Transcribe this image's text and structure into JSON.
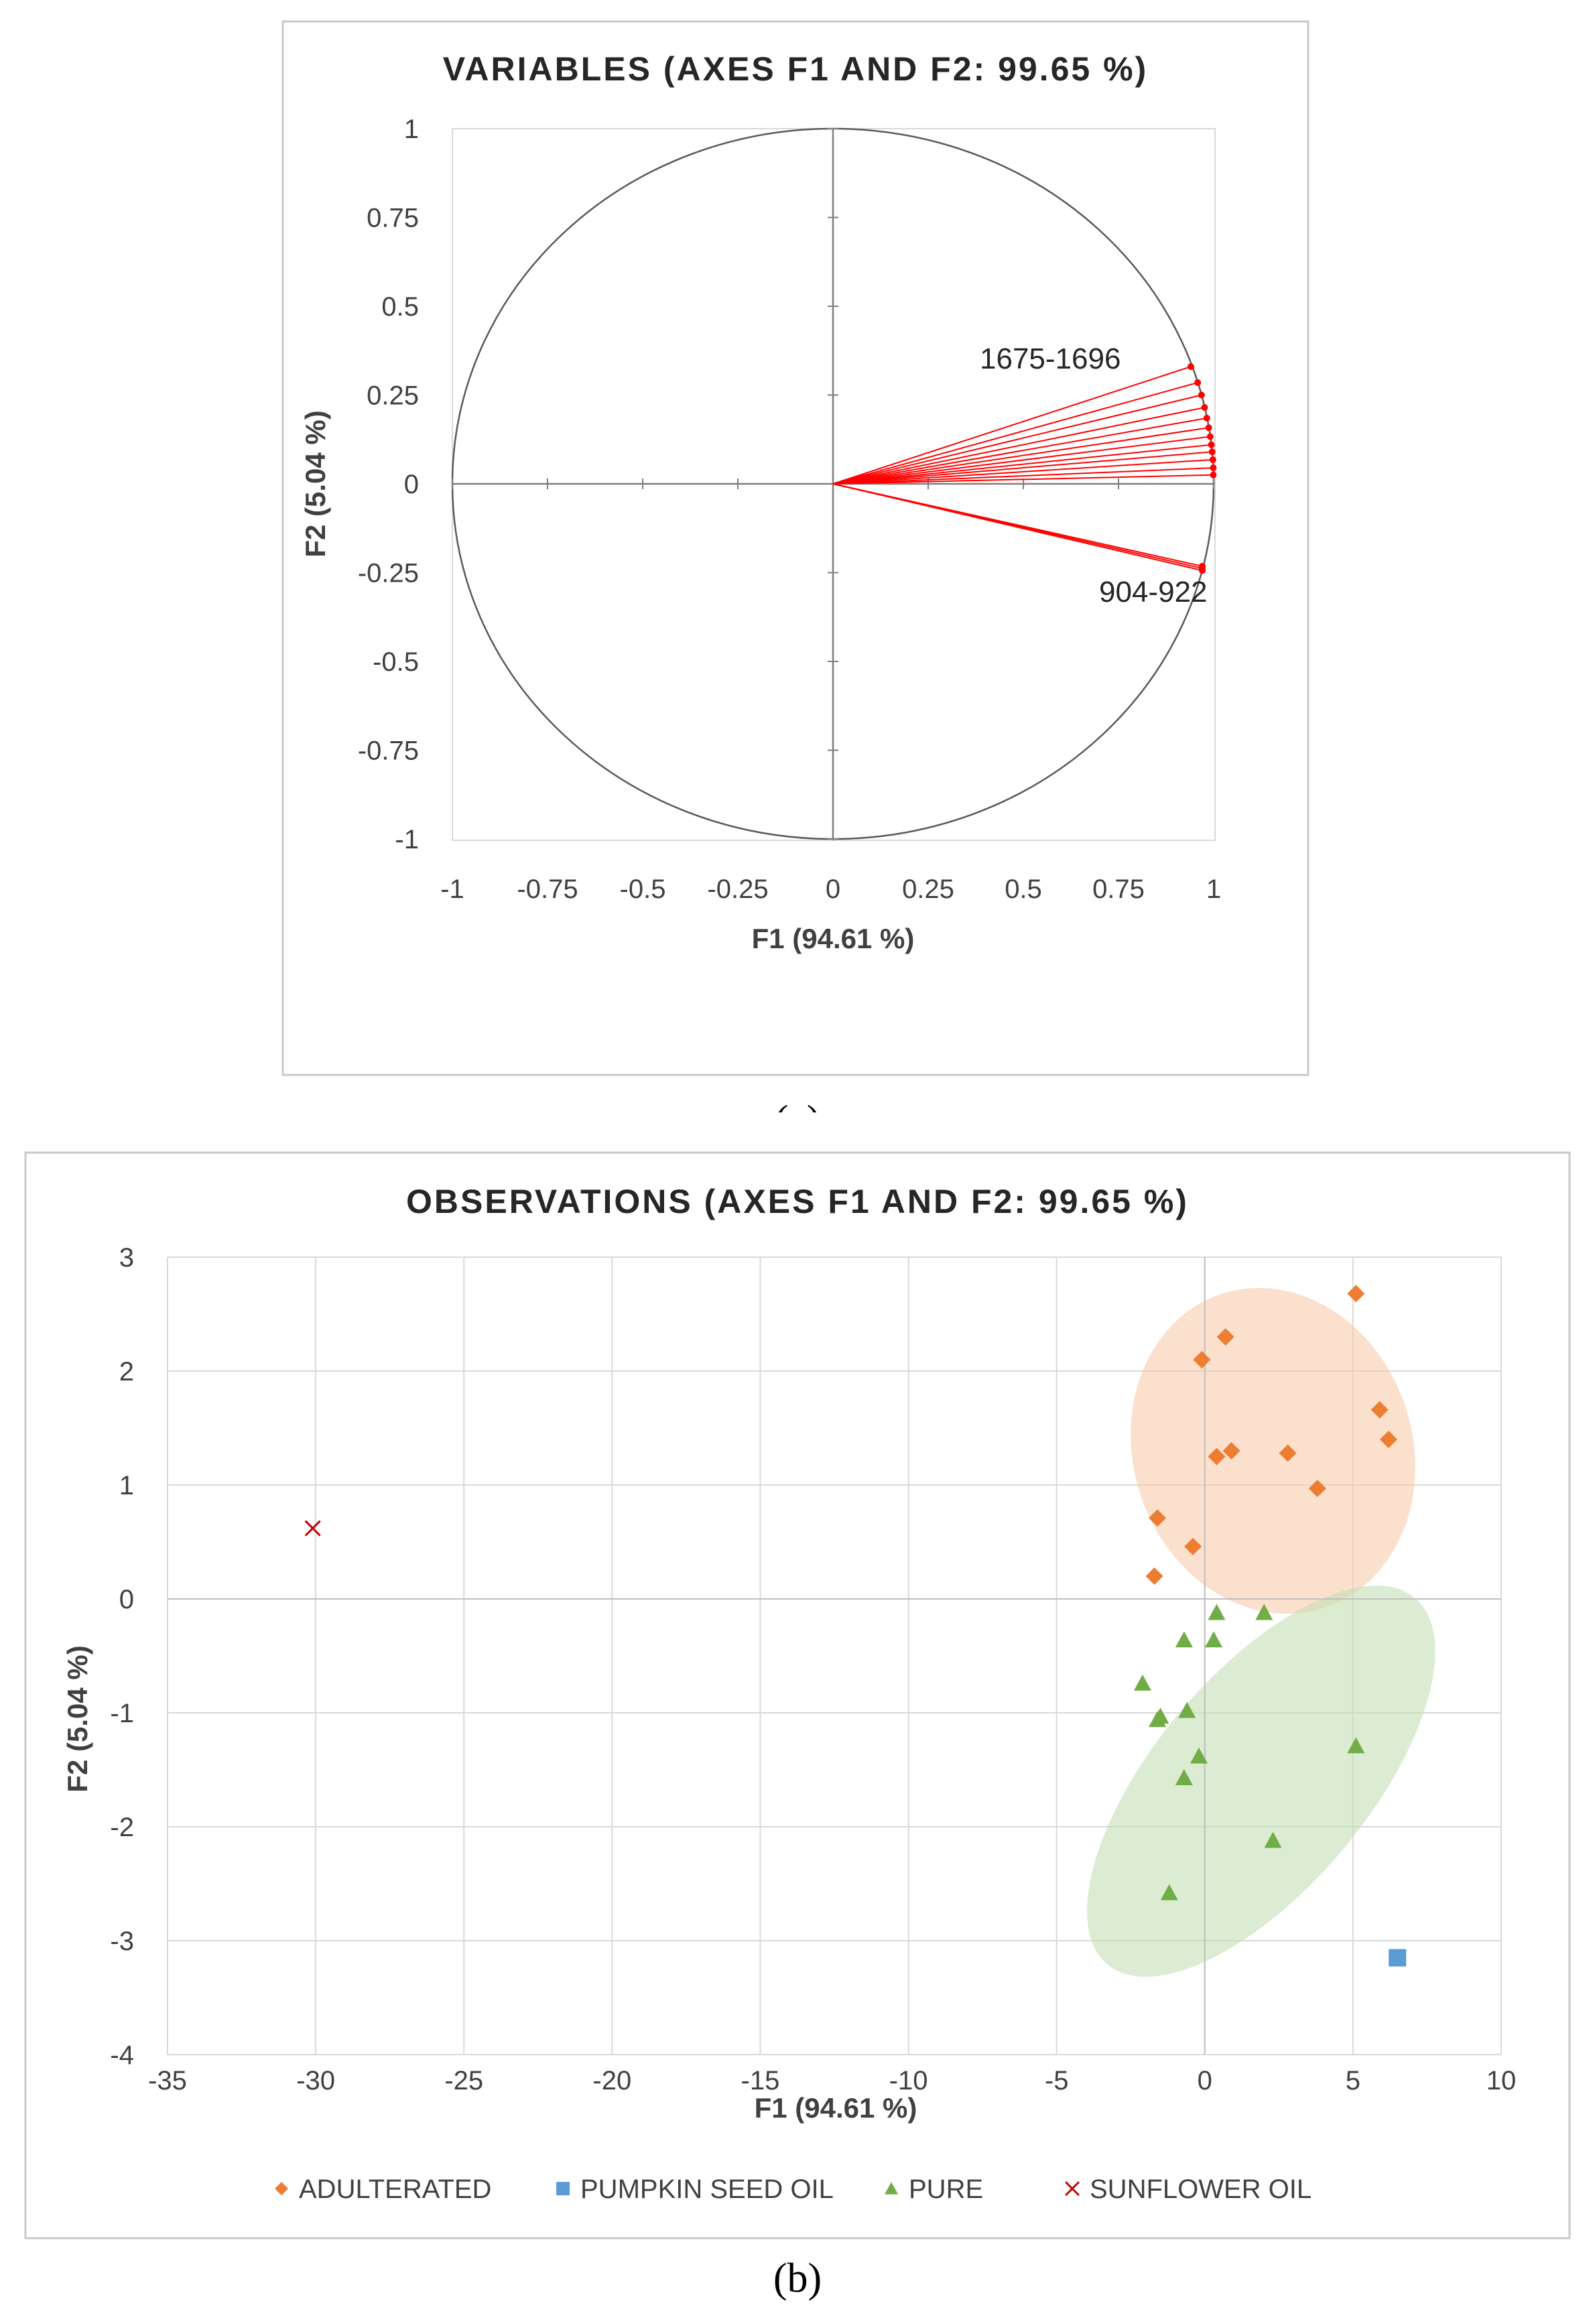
{
  "chart_data": [
    {
      "type": "scatter",
      "subtype": "correlation-circle",
      "title": "VARIABLES (AXES F1 AND F2: 99.65 %)",
      "xlabel": "F1 (94.61 %)",
      "ylabel": "F2 (5.04 %)",
      "xlim": [
        -1,
        1
      ],
      "ylim": [
        -1,
        1
      ],
      "x_ticks": [
        "-1",
        "-0.75",
        "-0.5",
        "-0.25",
        "0",
        "0.25",
        "0.5",
        "0.75",
        "1"
      ],
      "y_ticks": [
        "1",
        "0.75",
        "0.5",
        "0.25",
        "0",
        "-0.25",
        "-0.5",
        "-0.75",
        "-1"
      ],
      "grid": false,
      "caption": "(a)",
      "annotations": [
        {
          "text": "1675-1696",
          "x": 0.94,
          "y": 0.33
        },
        {
          "text": "904-922",
          "x": 0.97,
          "y": -0.24
        }
      ],
      "vectors": [
        {
          "x": 0.94,
          "y": 0.33
        },
        {
          "x": 0.958,
          "y": 0.285
        },
        {
          "x": 0.968,
          "y": 0.25
        },
        {
          "x": 0.976,
          "y": 0.215
        },
        {
          "x": 0.982,
          "y": 0.185
        },
        {
          "x": 0.987,
          "y": 0.158
        },
        {
          "x": 0.991,
          "y": 0.133
        },
        {
          "x": 0.994,
          "y": 0.11
        },
        {
          "x": 0.996,
          "y": 0.09
        },
        {
          "x": 0.998,
          "y": 0.068
        },
        {
          "x": 0.999,
          "y": 0.045
        },
        {
          "x": 0.999,
          "y": 0.025
        },
        {
          "x": 0.97,
          "y": -0.232
        },
        {
          "x": 0.97,
          "y": -0.238
        },
        {
          "x": 0.97,
          "y": -0.244
        }
      ]
    },
    {
      "type": "scatter",
      "title": "OBSERVATIONS (AXES F1 AND F2: 99.65 %)",
      "xlabel": "F1 (94.61 %)",
      "ylabel": "F2 (5.04 %)",
      "xlim": [
        -35,
        10
      ],
      "ylim": [
        -4,
        3
      ],
      "x_ticks": [
        "-35",
        "-30",
        "-25",
        "-20",
        "-15",
        "-10",
        "-5",
        "0",
        "5",
        "10"
      ],
      "y_ticks": [
        "3",
        "2",
        "1",
        "0",
        "-1",
        "-2",
        "-3",
        "-4"
      ],
      "grid": true,
      "caption": "(b)",
      "legend_position": "bottom",
      "series": [
        {
          "name": "ADULTERATED",
          "marker": "diamond",
          "color": "#ED7D31",
          "points": [
            {
              "x": 5.1,
              "y": 2.68
            },
            {
              "x": 0.7,
              "y": 2.3
            },
            {
              "x": -0.1,
              "y": 2.1
            },
            {
              "x": 5.9,
              "y": 1.66
            },
            {
              "x": 6.2,
              "y": 1.4
            },
            {
              "x": 0.9,
              "y": 1.3
            },
            {
              "x": 0.4,
              "y": 1.25
            },
            {
              "x": 2.8,
              "y": 1.28
            },
            {
              "x": 3.8,
              "y": 0.97
            },
            {
              "x": -1.6,
              "y": 0.71
            },
            {
              "x": -0.4,
              "y": 0.46
            },
            {
              "x": -1.7,
              "y": 0.2
            }
          ]
        },
        {
          "name": "PUMPKIN SEED OIL",
          "marker": "square",
          "color": "#5B9BD5",
          "points": [
            {
              "x": 6.5,
              "y": -3.15
            }
          ]
        },
        {
          "name": "PURE",
          "marker": "triangle",
          "color": "#70AD47",
          "points": [
            {
              "x": 0.4,
              "y": -0.12
            },
            {
              "x": 2.0,
              "y": -0.12
            },
            {
              "x": -0.7,
              "y": -0.36
            },
            {
              "x": 0.3,
              "y": -0.36
            },
            {
              "x": -2.1,
              "y": -0.74
            },
            {
              "x": -1.5,
              "y": -1.03
            },
            {
              "x": -1.6,
              "y": -1.06
            },
            {
              "x": -0.6,
              "y": -0.98
            },
            {
              "x": 5.1,
              "y": -1.29
            },
            {
              "x": -0.2,
              "y": -1.38
            },
            {
              "x": -0.7,
              "y": -1.57
            },
            {
              "x": 2.3,
              "y": -2.12
            },
            {
              "x": -1.2,
              "y": -2.58
            }
          ]
        },
        {
          "name": "SUNFLOWER OIL",
          "marker": "x",
          "color": "#C00000",
          "points": [
            {
              "x": -30.1,
              "y": 0.62
            }
          ]
        }
      ],
      "ellipses": [
        {
          "group": "ADULTERATED",
          "color": "#F8CBAD",
          "cx": 2.3,
          "cy": 1.3,
          "rx": 7.6,
          "ry": 1.45,
          "angle_deg": 18
        },
        {
          "group": "PURE",
          "color": "#C5E0B4",
          "cx": 1.9,
          "cy": -1.6,
          "rx": 5.8,
          "ry": 2.1,
          "angle_deg": -40
        }
      ]
    }
  ]
}
